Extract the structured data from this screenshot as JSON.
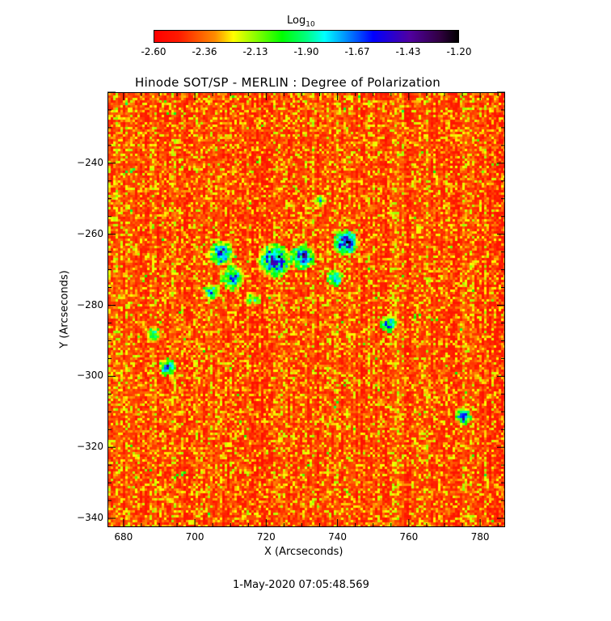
{
  "chart_data": {
    "type": "heatmap",
    "title": "Hinode SOT/SP - MERLIN : Degree of Polarization",
    "xlabel": "X (Arcseconds)",
    "ylabel": "Y (Arcseconds)",
    "xlim": [
      675.5,
      787
    ],
    "ylim": [
      -342.5,
      -220
    ],
    "xticks": [
      680,
      700,
      720,
      740,
      760,
      780
    ],
    "yticks": [
      -240,
      -260,
      -280,
      -300,
      -320,
      -340
    ],
    "colorbar": {
      "label": "Log",
      "label_sub": "10",
      "range": [
        -2.6,
        -1.2
      ],
      "ticks": [
        "-2.60",
        "-2.36",
        "-2.13",
        "-1.90",
        "-1.67",
        "-1.43",
        "-1.20"
      ],
      "colormap": [
        "#ff0000",
        "#ff8c00",
        "#ffff00",
        "#00ff00",
        "#00ffff",
        "#0000ff",
        "#5000a0",
        "#000000"
      ],
      "position": "top"
    },
    "timestamp": "1-May-2020 07:05:48.569"
  }
}
